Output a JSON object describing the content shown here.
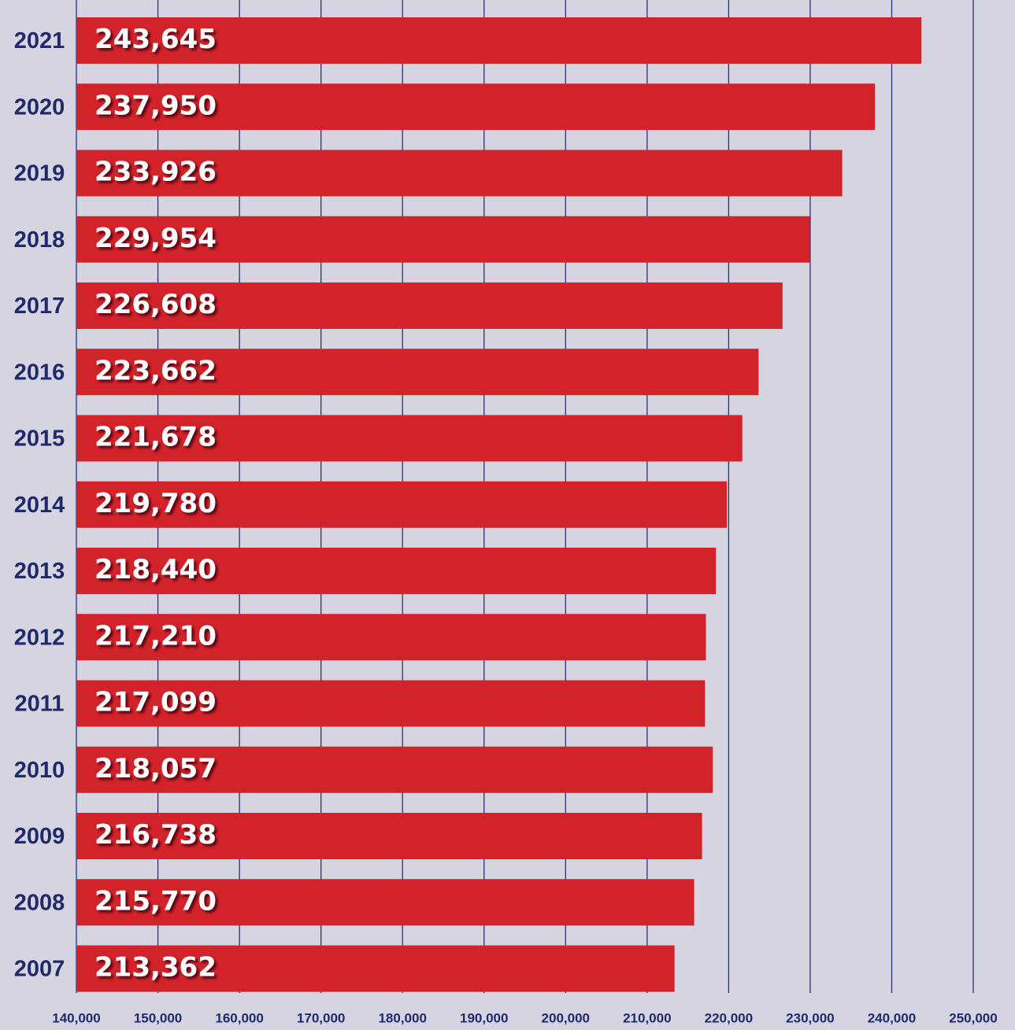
{
  "chart_data": {
    "type": "hbar",
    "categories": [
      "2021",
      "2020",
      "2019",
      "2018",
      "2017",
      "2016",
      "2015",
      "2014",
      "2013",
      "2012",
      "2011",
      "2010",
      "2009",
      "2008",
      "2007"
    ],
    "values": [
      243645,
      237950,
      233926,
      229954,
      226608,
      223662,
      221678,
      219780,
      218440,
      217210,
      217099,
      218057,
      216738,
      215770,
      213362
    ],
    "value_labels": [
      "243,645",
      "237,950",
      "233,926",
      "229,954",
      "226,608",
      "223,662",
      "221,678",
      "219,780",
      "218,440",
      "217,210",
      "217,099",
      "218,057",
      "216,738",
      "215,770",
      "213,362"
    ],
    "color": "#d2232b",
    "xlim": [
      140000,
      250000
    ],
    "xticks": [
      {
        "value": 140000,
        "label": "140,000"
      },
      {
        "value": 150000,
        "label": "150,000"
      },
      {
        "value": 160000,
        "label": "160,000"
      },
      {
        "value": 170000,
        "label": "170,000"
      },
      {
        "value": 180000,
        "label": "180,000"
      },
      {
        "value": 190000,
        "label": "190,000"
      },
      {
        "value": 200000,
        "label": "200,000"
      },
      {
        "value": 210000,
        "label": "210,000"
      },
      {
        "value": 220000,
        "label": "220,000"
      },
      {
        "value": 230000,
        "label": "230,000"
      },
      {
        "value": 240000,
        "label": "240,000"
      },
      {
        "value": 250000,
        "label": "250,000"
      }
    ],
    "grid": true
  }
}
